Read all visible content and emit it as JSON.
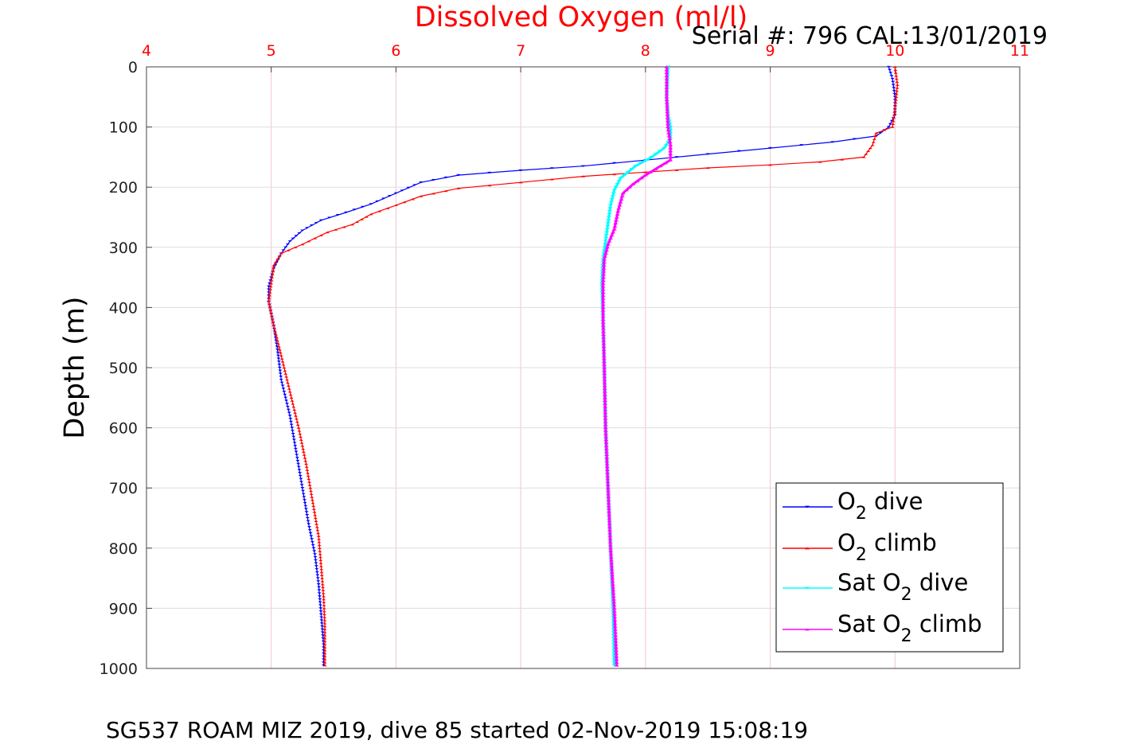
{
  "chart_data": {
    "type": "scatter",
    "title": "Dissolved Oxygen (ml/l)",
    "annotation": "Serial #: 796  CAL:13/01/2019",
    "ylabel": "Depth (m)",
    "xlim": [
      4,
      11
    ],
    "ylim": [
      0,
      1000
    ],
    "y_reversed": true,
    "x_axis_position": "top",
    "xticks": [
      4,
      5,
      6,
      7,
      8,
      9,
      10,
      11
    ],
    "yticks": [
      0,
      100,
      200,
      300,
      400,
      500,
      600,
      700,
      800,
      900,
      1000
    ],
    "grid": true,
    "legend_position": "bottom-right",
    "footer": "SG537 ROAM MIZ 2019, dive 85 started 02-Nov-2019 15:08:19",
    "series": [
      {
        "name": "O2 dive",
        "legend": {
          "base": "O",
          "sub": "2",
          "rest": " dive"
        },
        "color": "#0000ff",
        "marker": "triangle-down",
        "points": [
          [
            9.95,
            0
          ],
          [
            9.98,
            20
          ],
          [
            10.0,
            50
          ],
          [
            10.0,
            80
          ],
          [
            9.95,
            100
          ],
          [
            9.85,
            115
          ],
          [
            9.5,
            125
          ],
          [
            9.0,
            135
          ],
          [
            8.5,
            145
          ],
          [
            8.0,
            155
          ],
          [
            7.5,
            165
          ],
          [
            7.0,
            172
          ],
          [
            6.5,
            180
          ],
          [
            6.2,
            192
          ],
          [
            6.0,
            210
          ],
          [
            5.8,
            228
          ],
          [
            5.6,
            242
          ],
          [
            5.4,
            255
          ],
          [
            5.25,
            272
          ],
          [
            5.15,
            290
          ],
          [
            5.08,
            310
          ],
          [
            5.02,
            335
          ],
          [
            4.98,
            365
          ],
          [
            4.98,
            390
          ],
          [
            5.02,
            430
          ],
          [
            5.05,
            470
          ],
          [
            5.08,
            520
          ],
          [
            5.15,
            580
          ],
          [
            5.2,
            640
          ],
          [
            5.25,
            700
          ],
          [
            5.3,
            760
          ],
          [
            5.35,
            810
          ],
          [
            5.38,
            860
          ],
          [
            5.4,
            910
          ],
          [
            5.42,
            960
          ],
          [
            5.42,
            995
          ]
        ]
      },
      {
        "name": "O2 climb",
        "legend": {
          "base": "O",
          "sub": "2",
          "rest": " climb"
        },
        "color": "#ff0000",
        "marker": "triangle-up",
        "points": [
          [
            10.0,
            0
          ],
          [
            10.02,
            30
          ],
          [
            10.0,
            70
          ],
          [
            9.98,
            100
          ],
          [
            9.85,
            110
          ],
          [
            9.82,
            130
          ],
          [
            9.75,
            150
          ],
          [
            9.4,
            158
          ],
          [
            9.0,
            163
          ],
          [
            8.5,
            168
          ],
          [
            8.0,
            175
          ],
          [
            7.5,
            182
          ],
          [
            7.0,
            192
          ],
          [
            6.5,
            202
          ],
          [
            6.2,
            215
          ],
          [
            6.0,
            230
          ],
          [
            5.8,
            245
          ],
          [
            5.65,
            262
          ],
          [
            5.45,
            275
          ],
          [
            5.25,
            295
          ],
          [
            5.08,
            310
          ],
          [
            5.02,
            330
          ],
          [
            5.0,
            360
          ],
          [
            4.98,
            390
          ],
          [
            5.02,
            430
          ],
          [
            5.08,
            480
          ],
          [
            5.15,
            540
          ],
          [
            5.22,
            600
          ],
          [
            5.28,
            660
          ],
          [
            5.33,
            720
          ],
          [
            5.38,
            780
          ],
          [
            5.4,
            830
          ],
          [
            5.42,
            880
          ],
          [
            5.43,
            930
          ],
          [
            5.43,
            995
          ]
        ]
      },
      {
        "name": "Sat O2 dive",
        "legend": {
          "base": "Sat O",
          "sub": "2",
          "rest": " dive"
        },
        "color": "#00ffff",
        "marker": "triangle-down",
        "points": [
          [
            8.18,
            0
          ],
          [
            8.17,
            50
          ],
          [
            8.18,
            80
          ],
          [
            8.2,
            100
          ],
          [
            8.2,
            120
          ],
          [
            8.15,
            135
          ],
          [
            8.05,
            150
          ],
          [
            7.92,
            165
          ],
          [
            7.8,
            185
          ],
          [
            7.75,
            205
          ],
          [
            7.72,
            230
          ],
          [
            7.7,
            260
          ],
          [
            7.68,
            290
          ],
          [
            7.66,
            320
          ],
          [
            7.65,
            360
          ],
          [
            7.66,
            420
          ],
          [
            7.67,
            500
          ],
          [
            7.68,
            600
          ],
          [
            7.7,
            700
          ],
          [
            7.72,
            800
          ],
          [
            7.74,
            900
          ],
          [
            7.75,
            995
          ]
        ]
      },
      {
        "name": "Sat O2 climb",
        "legend": {
          "base": "Sat O",
          "sub": "2",
          "rest": " climb"
        },
        "color": "#ff00ff",
        "marker": "triangle-up",
        "points": [
          [
            8.17,
            0
          ],
          [
            8.17,
            50
          ],
          [
            8.18,
            100
          ],
          [
            8.2,
            130
          ],
          [
            8.2,
            155
          ],
          [
            8.12,
            165
          ],
          [
            8.0,
            180
          ],
          [
            7.9,
            195
          ],
          [
            7.82,
            210
          ],
          [
            7.78,
            240
          ],
          [
            7.75,
            270
          ],
          [
            7.7,
            295
          ],
          [
            7.67,
            320
          ],
          [
            7.66,
            360
          ],
          [
            7.66,
            420
          ],
          [
            7.67,
            500
          ],
          [
            7.68,
            600
          ],
          [
            7.7,
            700
          ],
          [
            7.72,
            800
          ],
          [
            7.75,
            900
          ],
          [
            7.77,
            995
          ]
        ]
      }
    ]
  }
}
